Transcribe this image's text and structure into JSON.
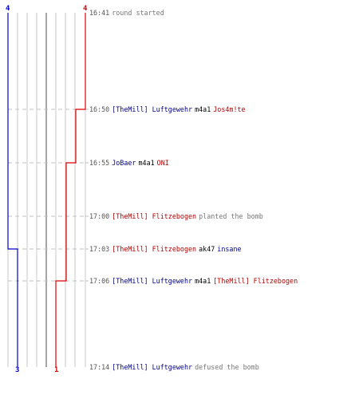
{
  "colors": {
    "team_blue": "#0000cc",
    "team_red": "#dd0000",
    "name_blue": "#00008b",
    "name_red": "#b00000",
    "grid": "#c8c8c8",
    "center_line": "#808080",
    "dashed_line": "#c0c0c0",
    "time_text": "#555555",
    "muted_text": "#777777"
  },
  "scores": {
    "blue_start": "4",
    "red_start": "4",
    "blue_end": "3",
    "red_end": "1"
  },
  "events": [
    {
      "time": "16:41",
      "parts": [
        {
          "text": "round started",
          "style": "muted"
        }
      ]
    },
    {
      "time": "16:50",
      "parts": [
        {
          "text": "[TheMill] Luftgewehr",
          "style": "blue"
        },
        {
          "text": "m4a1",
          "style": "black"
        },
        {
          "text": "Jos4m!te",
          "style": "red"
        }
      ]
    },
    {
      "time": "16:55",
      "parts": [
        {
          "text": "JoBaer",
          "style": "blue"
        },
        {
          "text": "m4a1",
          "style": "black"
        },
        {
          "text": "ONI",
          "style": "red"
        }
      ]
    },
    {
      "time": "17:00",
      "parts": [
        {
          "text": "[TheMill] Flitzebogen",
          "style": "red"
        },
        {
          "text": "planted the bomb",
          "style": "muted"
        }
      ]
    },
    {
      "time": "17:03",
      "parts": [
        {
          "text": "[TheMill] Flitzebogen",
          "style": "red"
        },
        {
          "text": "ak47",
          "style": "black"
        },
        {
          "text": "insane",
          "style": "blue"
        }
      ]
    },
    {
      "time": "17:06",
      "parts": [
        {
          "text": "[TheMill] Luftgewehr",
          "style": "blue"
        },
        {
          "text": "m4a1",
          "style": "black"
        },
        {
          "text": "[TheMill] Flitzebogen",
          "style": "red"
        }
      ]
    },
    {
      "time": "17:14",
      "parts": [
        {
          "text": "[TheMill] Luftgewehr",
          "style": "blue"
        },
        {
          "text": "defused the bomb",
          "style": "muted"
        }
      ]
    }
  ]
}
